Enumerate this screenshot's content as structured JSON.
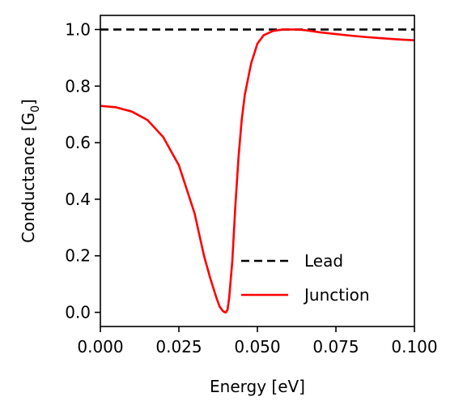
{
  "chart_data": {
    "type": "line",
    "xlabel": "Energy [eV]",
    "ylabel": "Conductance [G",
    "ylabel_subscript": "0",
    "ylabel_suffix": "]",
    "xlim": [
      0.0,
      0.1
    ],
    "ylim": [
      -0.05,
      1.05
    ],
    "xticks": [
      0.0,
      0.025,
      0.05,
      0.075,
      0.1
    ],
    "xtick_labels": [
      "0.000",
      "0.025",
      "0.050",
      "0.075",
      "0.100"
    ],
    "yticks": [
      0.0,
      0.2,
      0.4,
      0.6,
      0.8,
      1.0
    ],
    "ytick_labels": [
      "0.0",
      "0.2",
      "0.4",
      "0.6",
      "0.8",
      "1.0"
    ],
    "grid": false,
    "legend_position": "bottom-right",
    "series": [
      {
        "name": "Lead",
        "color": "#000000",
        "style": "dashed",
        "x": [
          0.0,
          0.1
        ],
        "y": [
          1.0,
          1.0
        ]
      },
      {
        "name": "Junction",
        "color": "#ff0000",
        "style": "solid",
        "x": [
          0.0,
          0.005,
          0.01,
          0.015,
          0.02,
          0.025,
          0.03,
          0.033,
          0.035,
          0.037,
          0.038,
          0.039,
          0.0395,
          0.04,
          0.0405,
          0.041,
          0.042,
          0.043,
          0.044,
          0.045,
          0.046,
          0.048,
          0.05,
          0.052,
          0.055,
          0.058,
          0.06,
          0.063,
          0.065,
          0.07,
          0.075,
          0.08,
          0.085,
          0.09,
          0.095,
          0.1
        ],
        "y": [
          0.73,
          0.725,
          0.71,
          0.68,
          0.62,
          0.52,
          0.35,
          0.2,
          0.12,
          0.05,
          0.02,
          0.005,
          0.001,
          0.0,
          0.01,
          0.05,
          0.18,
          0.38,
          0.55,
          0.68,
          0.77,
          0.88,
          0.95,
          0.98,
          0.995,
          1.0,
          1.0,
          1.0,
          0.998,
          0.99,
          0.984,
          0.978,
          0.973,
          0.969,
          0.965,
          0.962
        ]
      }
    ]
  }
}
